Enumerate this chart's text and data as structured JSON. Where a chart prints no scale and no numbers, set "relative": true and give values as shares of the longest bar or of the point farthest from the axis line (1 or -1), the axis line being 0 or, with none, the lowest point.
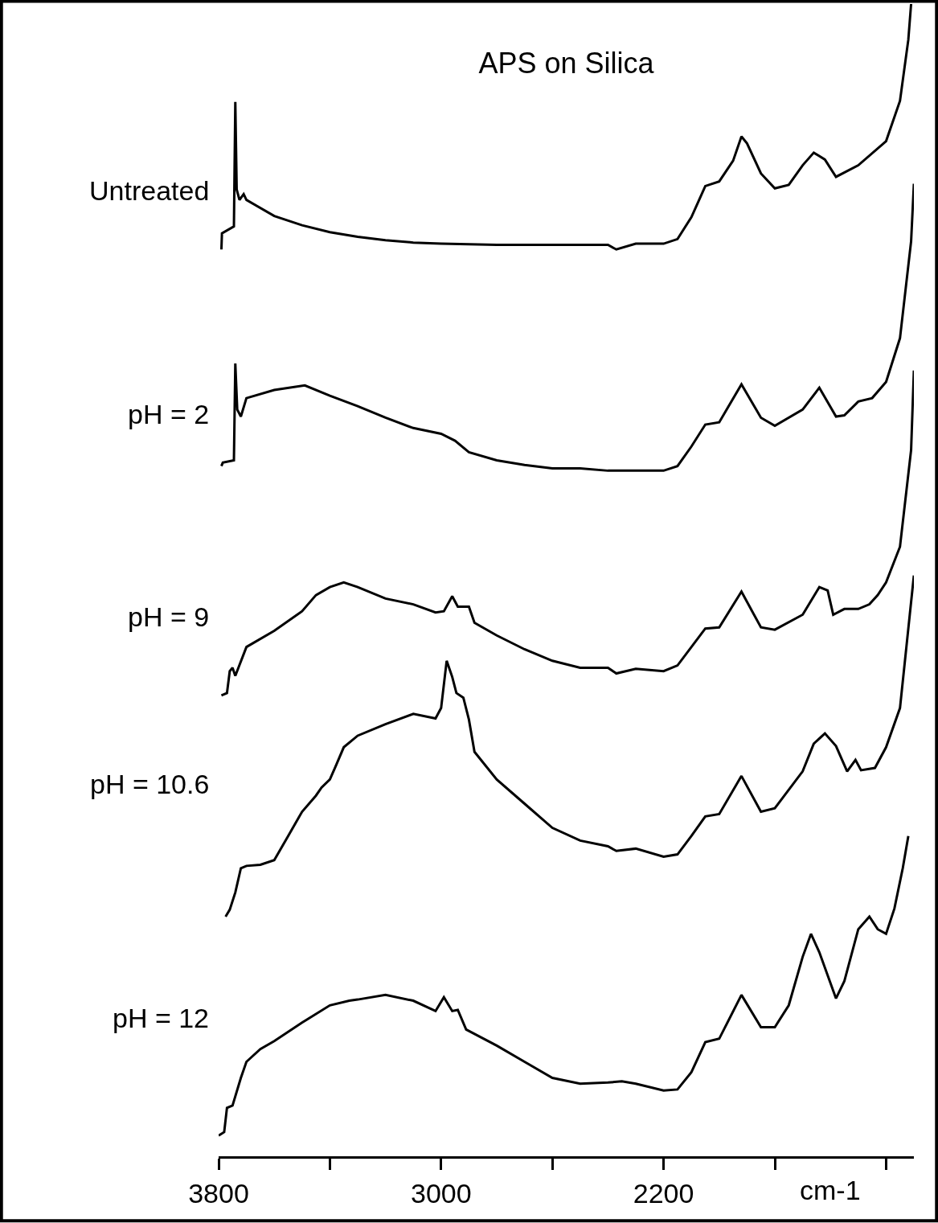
{
  "chart_data": {
    "type": "line",
    "title": "APS on Silica",
    "xlabel": "cm-1",
    "relative": true,
    "legend": false,
    "marker": "none",
    "line_style": "solid",
    "xlim": [
      3800,
      1300
    ],
    "xticks": [
      3800,
      {
        "value": 3400,
        "label": null
      },
      3000,
      {
        "value": 2600,
        "label": null
      },
      2200,
      {
        "value": 1800,
        "label": null
      },
      {
        "value": 1400,
        "label": null
      }
    ],
    "series": [
      {
        "name": "Untreated",
        "color": "#000000",
        "x": [
          3790,
          3788,
          3745,
          3740,
          3735,
          3725,
          3710,
          3700,
          3600,
          3500,
          3400,
          3300,
          3200,
          3100,
          3000,
          2800,
          2600,
          2400,
          2370,
          2300,
          2200,
          2150,
          2100,
          2050,
          2000,
          1950,
          1920,
          1900,
          1850,
          1800,
          1750,
          1700,
          1660,
          1620,
          1580,
          1500,
          1400,
          1350,
          1320,
          1310
        ],
        "values": [
          0.787,
          0.801,
          0.807,
          0.915,
          0.839,
          0.83,
          0.835,
          0.83,
          0.816,
          0.808,
          0.802,
          0.798,
          0.795,
          0.793,
          0.792,
          0.791,
          0.791,
          0.791,
          0.787,
          0.792,
          0.792,
          0.796,
          0.815,
          0.842,
          0.846,
          0.864,
          0.885,
          0.879,
          0.853,
          0.84,
          0.843,
          0.86,
          0.871,
          0.865,
          0.85,
          0.86,
          0.881,
          0.916,
          0.969,
          1.0
        ]
      },
      {
        "name": "pH = 2",
        "color": "#000000",
        "x": [
          3790,
          3785,
          3745,
          3740,
          3733,
          3720,
          3700,
          3600,
          3490,
          3400,
          3300,
          3200,
          3100,
          3000,
          2950,
          2900,
          2800,
          2700,
          2600,
          2500,
          2400,
          2300,
          2200,
          2150,
          2100,
          2050,
          2000,
          1920,
          1850,
          1800,
          1700,
          1640,
          1580,
          1550,
          1500,
          1450,
          1400,
          1350,
          1310,
          1300
        ],
        "values": [
          0.599,
          0.602,
          0.604,
          0.688,
          0.648,
          0.642,
          0.658,
          0.665,
          0.669,
          0.66,
          0.651,
          0.641,
          0.632,
          0.627,
          0.621,
          0.611,
          0.604,
          0.6,
          0.597,
          0.597,
          0.595,
          0.595,
          0.595,
          0.599,
          0.616,
          0.635,
          0.637,
          0.67,
          0.641,
          0.634,
          0.648,
          0.667,
          0.642,
          0.643,
          0.655,
          0.658,
          0.672,
          0.71,
          0.794,
          0.844
        ]
      },
      {
        "name": "pH = 9",
        "color": "#000000",
        "x": [
          3790,
          3770,
          3760,
          3750,
          3740,
          3700,
          3600,
          3500,
          3450,
          3400,
          3350,
          3300,
          3200,
          3100,
          3020,
          2990,
          2960,
          2940,
          2900,
          2880,
          2800,
          2700,
          2600,
          2500,
          2400,
          2370,
          2300,
          2200,
          2150,
          2100,
          2050,
          2000,
          1920,
          1850,
          1800,
          1700,
          1640,
          1610,
          1590,
          1550,
          1500,
          1460,
          1430,
          1400,
          1350,
          1310,
          1300
        ],
        "values": [
          0.4,
          0.402,
          0.421,
          0.424,
          0.417,
          0.442,
          0.456,
          0.473,
          0.487,
          0.494,
          0.498,
          0.494,
          0.484,
          0.479,
          0.472,
          0.473,
          0.486,
          0.477,
          0.477,
          0.463,
          0.452,
          0.44,
          0.43,
          0.424,
          0.424,
          0.419,
          0.423,
          0.421,
          0.426,
          0.442,
          0.458,
          0.459,
          0.49,
          0.459,
          0.457,
          0.47,
          0.494,
          0.491,
          0.47,
          0.475,
          0.475,
          0.479,
          0.487,
          0.498,
          0.529,
          0.613,
          0.682
        ]
      },
      {
        "name": "pH = 10.6",
        "color": "#000000",
        "x": [
          3775,
          3760,
          3740,
          3720,
          3700,
          3650,
          3600,
          3550,
          3500,
          3450,
          3430,
          3400,
          3380,
          3350,
          3300,
          3200,
          3100,
          3020,
          3000,
          2980,
          2960,
          2945,
          2920,
          2900,
          2880,
          2800,
          2700,
          2600,
          2500,
          2400,
          2370,
          2300,
          2200,
          2150,
          2100,
          2050,
          2000,
          1920,
          1850,
          1800,
          1700,
          1660,
          1620,
          1580,
          1540,
          1510,
          1490,
          1440,
          1400,
          1350,
          1300
        ],
        "values": [
          0.208,
          0.214,
          0.229,
          0.25,
          0.252,
          0.253,
          0.257,
          0.278,
          0.299,
          0.313,
          0.32,
          0.327,
          0.338,
          0.355,
          0.365,
          0.375,
          0.384,
          0.38,
          0.389,
          0.43,
          0.416,
          0.402,
          0.398,
          0.379,
          0.351,
          0.327,
          0.306,
          0.285,
          0.274,
          0.269,
          0.265,
          0.267,
          0.26,
          0.262,
          0.278,
          0.295,
          0.297,
          0.33,
          0.299,
          0.302,
          0.334,
          0.358,
          0.367,
          0.356,
          0.334,
          0.344,
          0.335,
          0.337,
          0.355,
          0.389,
          0.504
        ]
      },
      {
        "name": "pH = 12",
        "color": "#000000",
        "x": [
          3800,
          3780,
          3770,
          3750,
          3720,
          3700,
          3650,
          3600,
          3500,
          3400,
          3330,
          3300,
          3200,
          3100,
          3020,
          2990,
          2960,
          2940,
          2910,
          2800,
          2700,
          2600,
          2500,
          2400,
          2350,
          2300,
          2200,
          2150,
          2100,
          2050,
          2000,
          1920,
          1850,
          1800,
          1750,
          1700,
          1670,
          1640,
          1580,
          1550,
          1500,
          1460,
          1430,
          1400,
          1370,
          1340,
          1320
        ],
        "values": [
          0.018,
          0.021,
          0.042,
          0.044,
          0.068,
          0.082,
          0.093,
          0.1,
          0.116,
          0.131,
          0.135,
          0.136,
          0.14,
          0.135,
          0.126,
          0.138,
          0.126,
          0.127,
          0.11,
          0.096,
          0.082,
          0.068,
          0.063,
          0.064,
          0.065,
          0.063,
          0.057,
          0.058,
          0.073,
          0.099,
          0.102,
          0.14,
          0.112,
          0.112,
          0.131,
          0.173,
          0.193,
          0.177,
          0.137,
          0.152,
          0.197,
          0.208,
          0.197,
          0.193,
          0.215,
          0.25,
          0.278
        ]
      }
    ]
  }
}
